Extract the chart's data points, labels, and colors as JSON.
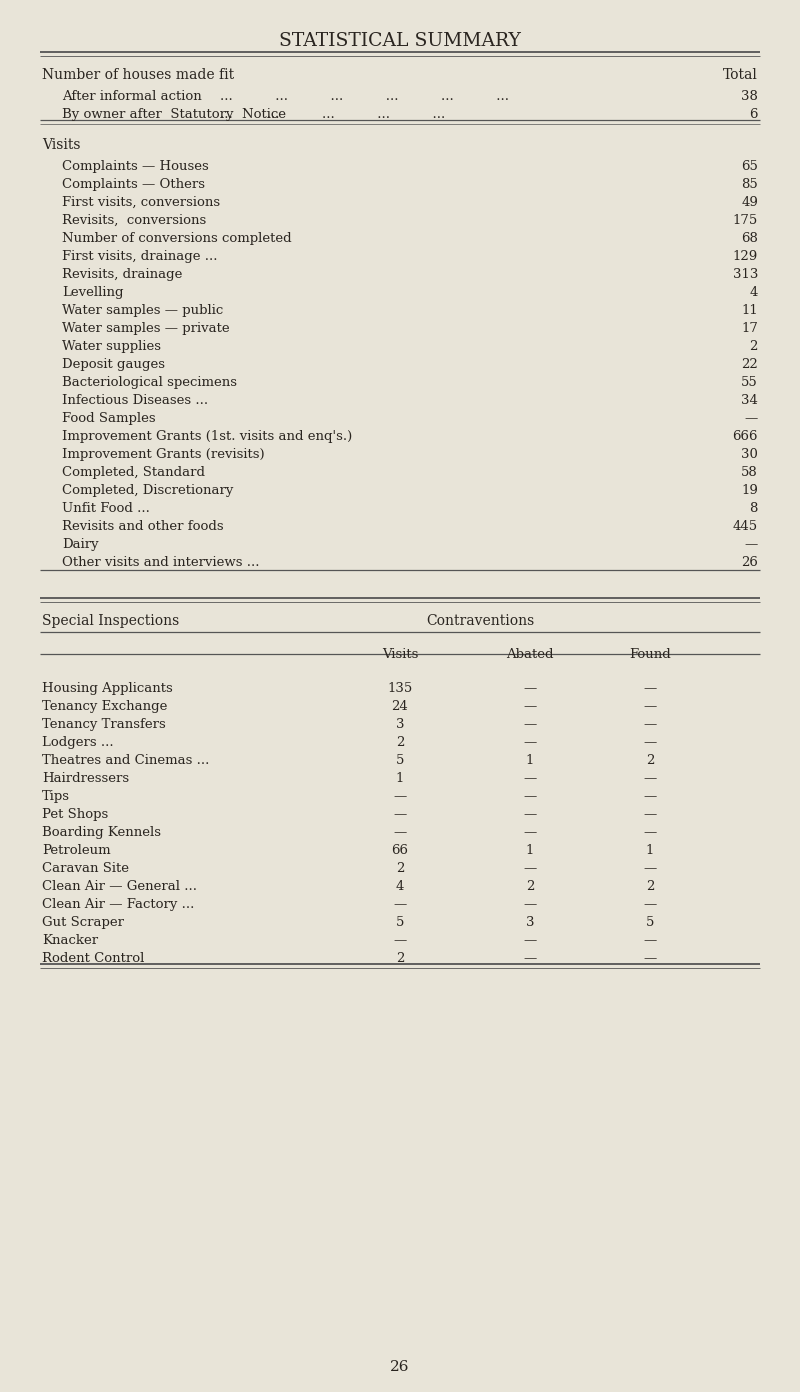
{
  "title": "STATISTICAL SUMMARY",
  "bg_color": "#e8e4d8",
  "text_color": "#2a2520",
  "page_number": "26",
  "section1_header_left": "Number of houses made fit",
  "section1_header_right": "Total",
  "section1_rows": [
    {
      "label": "After informal action",
      "dots": "...          ...          ...          ...          ...          ...",
      "value": "38"
    },
    {
      "label": "By owner after  Statutory  Notice",
      "dots": "...        ...          ...          ...          ...",
      "value": "6"
    }
  ],
  "section2_header": "Visits",
  "section2_rows": [
    {
      "label": "Complaints — Houses",
      "dots": "...          ...          ...          ...          ...          ...",
      "value": "65"
    },
    {
      "label": "Complaints — Others",
      "dots": "...          ...          ...          ...          ...          ...",
      "value": "85"
    },
    {
      "label": "First visits, conversions",
      "dots": "...          ...          ...          ...          ...          ...",
      "value": "49"
    },
    {
      "label": "Revisits,  conversions",
      "dots": "...          ...          ...          ...          ...          ...",
      "value": "175"
    },
    {
      "label": "Number of conversions completed",
      "dots": "...          ...          ...          ...          ...",
      "value": "68"
    },
    {
      "label": "First visits, drainage ...",
      "dots": "...          ...          ...          ...          ...          ...",
      "value": "129"
    },
    {
      "label": "Revisits, drainage",
      "dots": "...          ...          ...          ...          ...          ...",
      "value": "313"
    },
    {
      "label": "Levelling",
      "dots": "...          ...          ...          ...          ...          ...          ...",
      "value": "4"
    },
    {
      "label": "Water samples — public",
      "dots": "...          ...          ...          ...          ...          ...",
      "value": "11"
    },
    {
      "label": "Water samples — private",
      "dots": "...          ...          ...          ...          ...          ...",
      "value": "17"
    },
    {
      "label": "Water supplies",
      "dots": "...          ...          ...          ...          ...          ...          ...",
      "value": "2"
    },
    {
      "label": "Deposit gauges",
      "dots": "...          ...          ...          ...          ...          ...          ...",
      "value": "22"
    },
    {
      "label": "Bacteriological specimens",
      "dots": "...          ...          ...          ...          ...          ...",
      "value": "55"
    },
    {
      "label": "Infectious Diseases ...",
      "dots": "...          ...          ...          ...          ...          ...",
      "value": "34"
    },
    {
      "label": "Food Samples",
      "dots": "...          ...          ...          ...          ...          ...          ...",
      "value": "—"
    },
    {
      "label": "Improvement Grants (1st. visits and enq's.)",
      "dots": "...          ...          ...          ...",
      "value": "666"
    },
    {
      "label": "Improvement Grants (revisits)",
      "dots": "...          ...          ...          ...          ...          ...",
      "value": "30"
    },
    {
      "label": "Completed, Standard",
      "dots": "...          ...          ...          ...          ...          ...          ...",
      "value": "58"
    },
    {
      "label": "Completed, Discretionary",
      "dots": "...          ...          ...          ...          ...          ...",
      "value": "19"
    },
    {
      "label": "Unfit Food ...",
      "dots": "...          ...          ...          ...          ...          ...          ...",
      "value": "8"
    },
    {
      "label": "Revisits and other foods",
      "dots": "...          ...          ...          ...          ...          ...",
      "value": "445"
    },
    {
      "label": "Dairy",
      "dots": "...          ...          ...          ...          ...          ...          ...          ...",
      "value": "—"
    },
    {
      "label": "Other visits and interviews ...",
      "dots": "...          ...          ...          ...          ...          ...",
      "value": "26"
    }
  ],
  "section3_header_left": "Special Inspections",
  "section3_header_right": "Contraventions",
  "section3_rows": [
    {
      "label": "Housing Applicants",
      "dots": "...          ...          ...",
      "visits": "135",
      "abated": "—",
      "found": "—"
    },
    {
      "label": "Tenancy Exchange",
      "dots": "...          ...          ...",
      "visits": "24",
      "abated": "—",
      "found": "—"
    },
    {
      "label": "Tenancy Transfers",
      "dots": "...          ...          ...",
      "visits": "3",
      "abated": "—",
      "found": "—"
    },
    {
      "label": "Lodgers ...",
      "dots": "...          ...          ...          ...",
      "visits": "2",
      "abated": "—",
      "found": "—"
    },
    {
      "label": "Theatres and Cinemas ...",
      "dots": "...          ...          ...",
      "visits": "5",
      "abated": "1",
      "found": "2"
    },
    {
      "label": "Hairdressers",
      "dots": "...          ...          ...          ...",
      "visits": "1",
      "abated": "—",
      "found": "—"
    },
    {
      "label": "Tips",
      "dots": "...          ...          ...          ...          ...",
      "visits": "—",
      "abated": "—",
      "found": "—"
    },
    {
      "label": "Pet Shops",
      "dots": "...          ...          ...          ...",
      "visits": "—",
      "abated": "—",
      "found": "—"
    },
    {
      "label": "Boarding Kennels",
      "dots": "...          ...          ...          ...",
      "visits": "—",
      "abated": "—",
      "found": "—"
    },
    {
      "label": "Petroleum",
      "dots": "...          ...          ...          ...          ...",
      "visits": "66",
      "abated": "1",
      "found": "1"
    },
    {
      "label": "Caravan Site",
      "dots": "...          ...          ...          ...          ...",
      "visits": "2",
      "abated": "—",
      "found": "—"
    },
    {
      "label": "Clean Air — General ...",
      "dots": "...          ...          ...",
      "visits": "4",
      "abated": "2",
      "found": "2"
    },
    {
      "label": "Clean Air — Factory ...",
      "dots": "...          ...          ...",
      "visits": "—",
      "abated": "—",
      "found": "—"
    },
    {
      "label": "Gut Scraper",
      "dots": "...          ...          ...          ...          ...",
      "visits": "5",
      "abated": "3",
      "found": "5"
    },
    {
      "label": "Knacker",
      "dots": "...          ...          ...          ...          ...",
      "visits": "—",
      "abated": "—",
      "found": "—"
    },
    {
      "label": "Rodent Control",
      "dots": "...          ...          ...          ...",
      "visits": "2",
      "abated": "—",
      "found": "—"
    }
  ]
}
